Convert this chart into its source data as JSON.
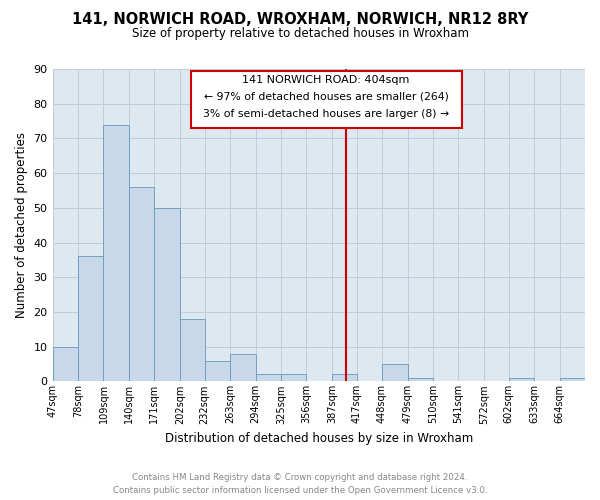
{
  "title": "141, NORWICH ROAD, WROXHAM, NORWICH, NR12 8RY",
  "subtitle": "Size of property relative to detached houses in Wroxham",
  "xlabel": "Distribution of detached houses by size in Wroxham",
  "ylabel": "Number of detached properties",
  "bar_color": "#c8d8e8",
  "bar_edge_color": "#6699bb",
  "background_color": "#ffffff",
  "axes_facecolor": "#dde8f0",
  "grid_color": "#c0ccd8",
  "bin_labels": [
    "47sqm",
    "78sqm",
    "109sqm",
    "140sqm",
    "171sqm",
    "202sqm",
    "232sqm",
    "263sqm",
    "294sqm",
    "325sqm",
    "356sqm",
    "387sqm",
    "417sqm",
    "448sqm",
    "479sqm",
    "510sqm",
    "541sqm",
    "572sqm",
    "602sqm",
    "633sqm",
    "664sqm"
  ],
  "bar_heights": [
    10,
    36,
    74,
    56,
    50,
    18,
    6,
    8,
    2,
    2,
    0,
    2,
    0,
    5,
    1,
    0,
    0,
    0,
    1,
    0,
    1
  ],
  "ylim": [
    0,
    90
  ],
  "yticks": [
    0,
    10,
    20,
    30,
    40,
    50,
    60,
    70,
    80,
    90
  ],
  "property_line_color": "#cc0000",
  "annotation_title": "141 NORWICH ROAD: 404sqm",
  "annotation_line1": "← 97% of detached houses are smaller (264)",
  "annotation_line2": "3% of semi-detached houses are larger (8) →",
  "annotation_box_color": "#cc0000",
  "footer_line1": "Contains HM Land Registry data © Crown copyright and database right 2024.",
  "footer_line2": "Contains public sector information licensed under the Open Government Licence v3.0.",
  "bin_edges_sqm": [
    47,
    78,
    109,
    140,
    171,
    202,
    232,
    263,
    294,
    325,
    356,
    387,
    417,
    448,
    479,
    510,
    541,
    572,
    602,
    633,
    664,
    695
  ]
}
